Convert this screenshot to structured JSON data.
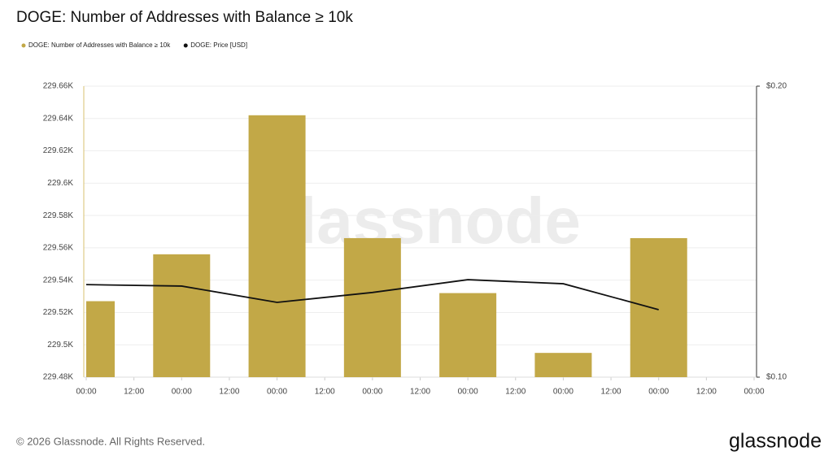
{
  "chart_data": {
    "type": "bar",
    "title": "DOGE: Number of Addresses with Balance ≥ 10k",
    "x": [
      0,
      24,
      48,
      72,
      96,
      120,
      144
    ],
    "series": [
      {
        "name": "DOGE: Number of Addresses with Balance ≥ 10k",
        "type": "bar",
        "color": "#c2a847",
        "values": [
          229527,
          229556,
          229642,
          229566,
          229532,
          229495,
          229566
        ]
      },
      {
        "name": "DOGE: Price [USD]",
        "type": "line",
        "axis": "y2",
        "color": "#111111",
        "values": [
          0.1318,
          0.1313,
          0.1257,
          0.1291,
          0.1335,
          0.1321,
          0.1232
        ]
      }
    ],
    "xlim": [
      0,
      168
    ],
    "xticks": [
      {
        "value": 0,
        "label": "00:00"
      },
      {
        "value": 12,
        "label": "12:00"
      },
      {
        "value": 24,
        "label": "00:00"
      },
      {
        "value": 36,
        "label": "12:00"
      },
      {
        "value": 48,
        "label": "00:00"
      },
      {
        "value": 60,
        "label": "12:00"
      },
      {
        "value": 72,
        "label": "00:00"
      },
      {
        "value": 84,
        "label": "12:00"
      },
      {
        "value": 96,
        "label": "00:00"
      },
      {
        "value": 108,
        "label": "12:00"
      },
      {
        "value": 120,
        "label": "00:00"
      },
      {
        "value": 132,
        "label": "12:00"
      },
      {
        "value": 144,
        "label": "00:00"
      },
      {
        "value": 156,
        "label": "12:00"
      },
      {
        "value": 168,
        "label": "00:00"
      }
    ],
    "ylim": [
      229480,
      229660
    ],
    "yticks": [
      {
        "value": 229480,
        "label": "229.48K"
      },
      {
        "value": 229500,
        "label": "229.5K"
      },
      {
        "value": 229520,
        "label": "229.52K"
      },
      {
        "value": 229540,
        "label": "229.54K"
      },
      {
        "value": 229560,
        "label": "229.56K"
      },
      {
        "value": 229580,
        "label": "229.58K"
      },
      {
        "value": 229600,
        "label": "229.6K"
      },
      {
        "value": 229620,
        "label": "229.62K"
      },
      {
        "value": 229640,
        "label": "229.64K"
      },
      {
        "value": 229660,
        "label": "229.66K"
      }
    ],
    "y2lim": [
      0.1,
      0.2
    ],
    "y2ticks": [
      {
        "value": 0.1,
        "label": "$0.10"
      },
      {
        "value": 0.2,
        "label": "$0.20"
      }
    ],
    "grid": true
  },
  "watermark": "glassnode",
  "footer": "© 2026 Glassnode. All Rights Reserved.",
  "logo": "glassnode"
}
